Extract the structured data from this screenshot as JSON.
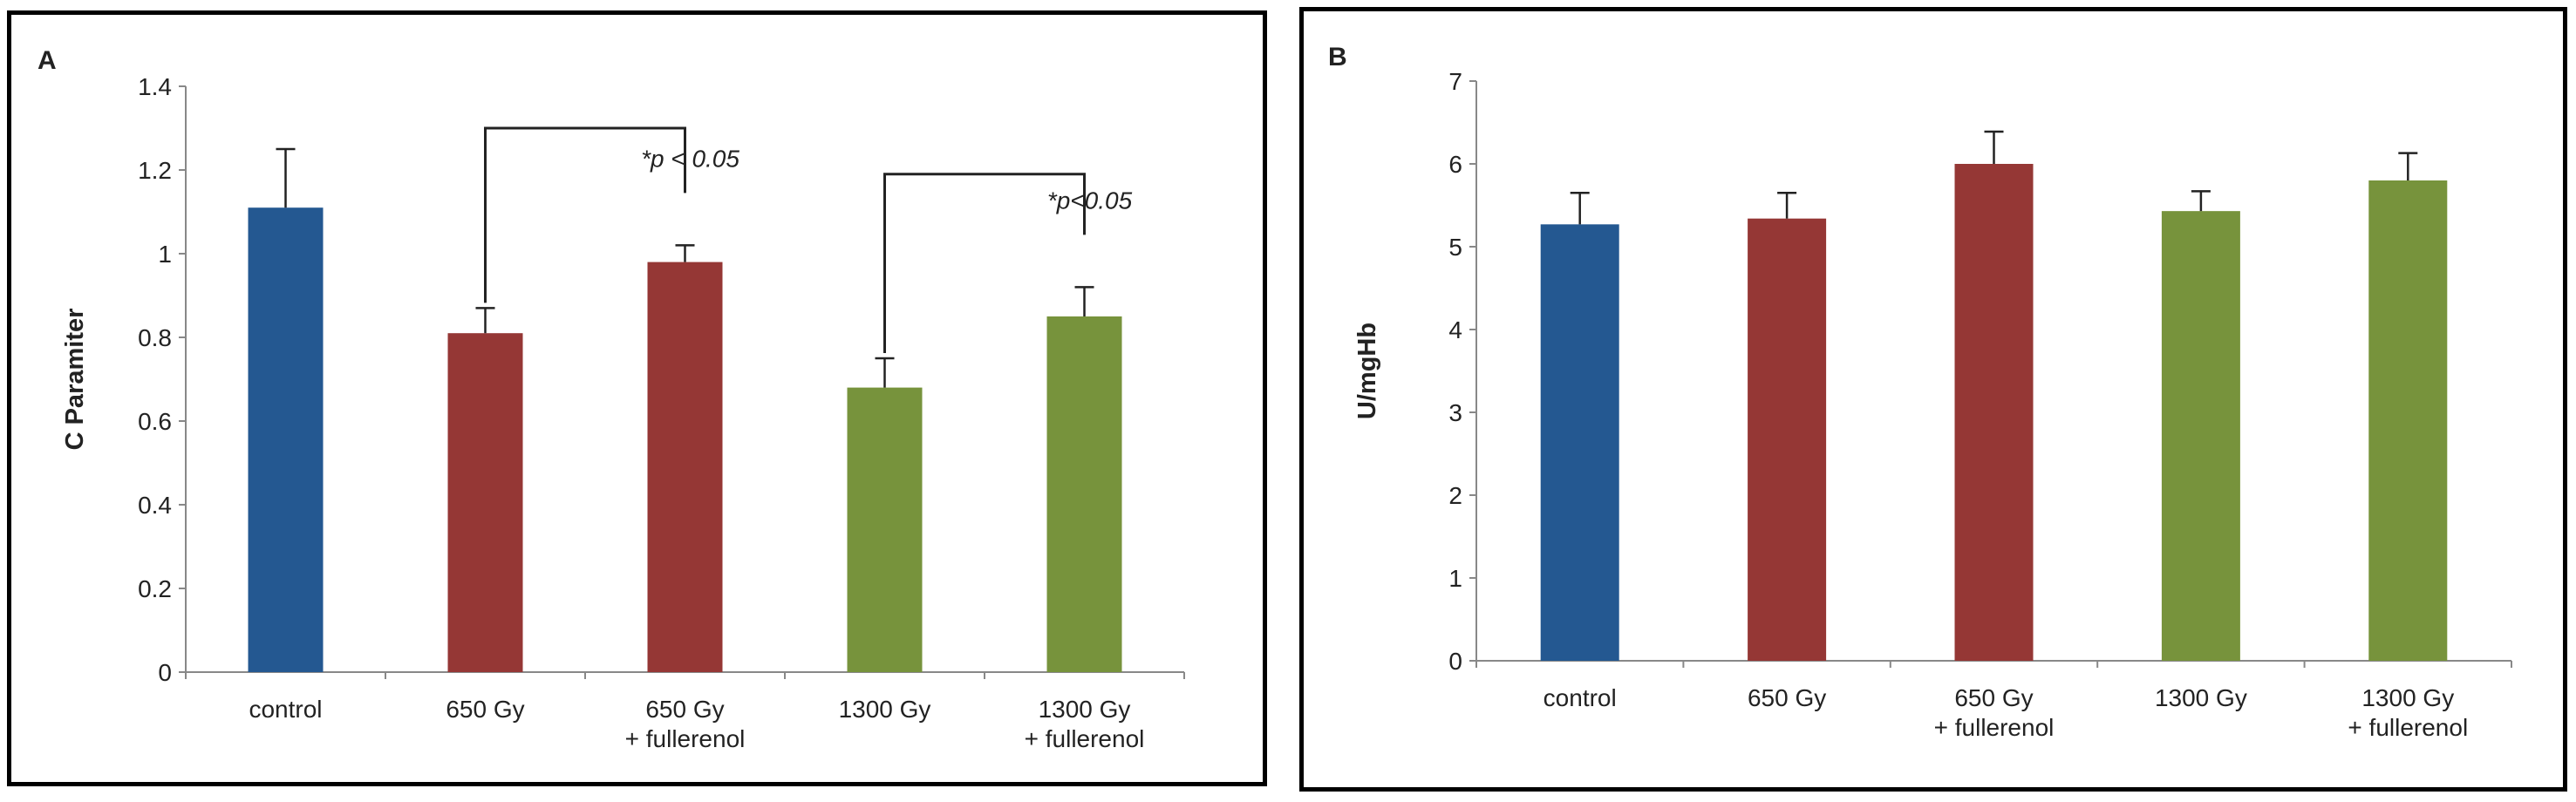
{
  "chart_data": [
    {
      "type": "bar",
      "panel_label": "A",
      "ylabel": "C Paramiter",
      "xlabel": "",
      "ylim": [
        0,
        1.4
      ],
      "yticks": [
        "0",
        "0.2",
        "0.4",
        "0.6",
        "0.8",
        "1",
        "1.2",
        "1.4"
      ],
      "categories": [
        [
          "control"
        ],
        [
          "650 Gy"
        ],
        [
          "650 Gy",
          "+ fullerenol"
        ],
        [
          "1300 Gy"
        ],
        [
          "1300 Gy",
          "+ fullerenol"
        ]
      ],
      "values": [
        1.11,
        0.81,
        0.98,
        0.68,
        0.85
      ],
      "errors": [
        0.14,
        0.06,
        0.04,
        0.07,
        0.07
      ],
      "bar_colors": [
        "#245891",
        "#953735",
        "#953735",
        "#77933C",
        "#77933C"
      ],
      "annotations": [
        {
          "text": "*p < 0.05",
          "from": 1,
          "to": 2,
          "y": 1.3
        },
        {
          "text": "*p<0.05",
          "from": 3,
          "to": 4,
          "y": 1.19
        }
      ]
    },
    {
      "type": "bar",
      "panel_label": "B",
      "ylabel": "U/mgHb",
      "xlabel": "",
      "ylim": [
        0,
        7
      ],
      "yticks": [
        "0",
        "1",
        "2",
        "3",
        "4",
        "5",
        "6",
        "7"
      ],
      "categories": [
        [
          "control"
        ],
        [
          "650 Gy"
        ],
        [
          "650 Gy",
          "+ fullerenol"
        ],
        [
          "1300 Gy"
        ],
        [
          "1300 Gy",
          "+ fullerenol"
        ]
      ],
      "values": [
        5.27,
        5.34,
        6.0,
        5.43,
        5.8
      ],
      "errors": [
        0.38,
        0.31,
        0.39,
        0.24,
        0.33
      ],
      "bar_colors": [
        "#245891",
        "#953735",
        "#953735",
        "#77933C",
        "#77933C"
      ],
      "annotations": []
    }
  ]
}
